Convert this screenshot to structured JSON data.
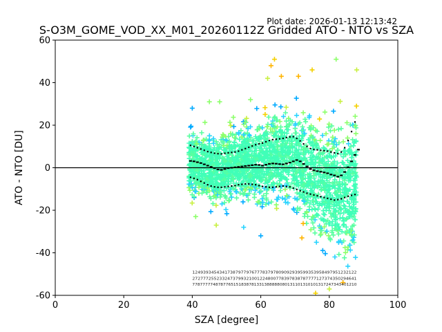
{
  "plot_date": "Plot date: 2026-01-13 12:13:42",
  "chart_data": {
    "type": "scatter",
    "title": "S-O3M_GOME_VOD_XX_M01_20260112Z Gridded ATO - NTO vs SZA",
    "xlabel": "SZA [degree]",
    "ylabel": "ATO - NTO [DU]",
    "xlim": [
      0,
      100
    ],
    "ylim": [
      -60,
      60
    ],
    "xticks": [
      0,
      20,
      40,
      60,
      80,
      100
    ],
    "yticks": [
      -60,
      -40,
      -20,
      0,
      20,
      40,
      60
    ],
    "zero_line": 0,
    "grid": false,
    "marker": "+",
    "point_colors": [
      "#00aaff",
      "#2ad4ff",
      "#40ffb8",
      "#58ffa0",
      "#8cff6a",
      "#c8f040",
      "#f4d000",
      "#ffb400"
    ],
    "sza_range": [
      39,
      88
    ],
    "envelope": {
      "x": [
        39,
        42,
        45,
        48,
        51,
        54,
        57,
        60,
        63,
        66,
        69,
        72,
        75,
        78,
        81,
        84,
        86,
        88
      ],
      "upper": [
        24,
        22,
        24,
        22,
        24,
        27,
        28,
        30,
        32,
        35,
        36,
        35,
        33,
        31,
        30,
        32,
        36,
        40
      ],
      "lower": [
        -18,
        -20,
        -22,
        -24,
        -23,
        -22,
        -22,
        -24,
        -25,
        -24,
        -26,
        -32,
        -40,
        -46,
        -50,
        -54,
        -56,
        -48
      ]
    },
    "outliers": [
      {
        "x": 64,
        "y": 51
      },
      {
        "x": 63,
        "y": 48
      },
      {
        "x": 62,
        "y": 42
      },
      {
        "x": 66,
        "y": 43
      },
      {
        "x": 71,
        "y": 43
      },
      {
        "x": 75,
        "y": 46
      },
      {
        "x": 82,
        "y": 51
      },
      {
        "x": 88,
        "y": 46
      },
      {
        "x": 40,
        "y": 28
      },
      {
        "x": 45,
        "y": 31
      },
      {
        "x": 48,
        "y": 31
      },
      {
        "x": 57,
        "y": 32
      },
      {
        "x": 76,
        "y": -59
      },
      {
        "x": 80,
        "y": -57
      },
      {
        "x": 84,
        "y": -54
      },
      {
        "x": 72,
        "y": -33
      },
      {
        "x": 60,
        "y": -32
      },
      {
        "x": 55,
        "y": -28
      },
      {
        "x": 47,
        "y": -27
      },
      {
        "x": 41,
        "y": -23
      }
    ],
    "series": [
      {
        "x": [
          39.5,
          40.5,
          41.5,
          42.5,
          43.5,
          44.5,
          45.5,
          46.5,
          47.5,
          48.5,
          49.5,
          50.5,
          51.5,
          52.5,
          53.5,
          54.5,
          55.5,
          56.5,
          57.5,
          58.5,
          59.5,
          60.5,
          61.5,
          62.5,
          63.5,
          64.5,
          65.5,
          66.5,
          67.5,
          68.5,
          69.5,
          70.5,
          71.5,
          72.5,
          73.5,
          74.5,
          75.5,
          76.5,
          77.5,
          78.5,
          79.5,
          80.5,
          81.5,
          82.5,
          83.5,
          84.5,
          85.5,
          86.5,
          87.5,
          88.5
        ],
        "y": [
          3.2,
          3.0,
          2.6,
          2.2,
          1.6,
          1.0,
          0.4,
          -0.2,
          -0.8,
          -1.0,
          -0.6,
          -0.2,
          0.0,
          0.2,
          0.4,
          0.6,
          0.8,
          1.0,
          1.2,
          1.4,
          1.3,
          1.0,
          1.4,
          1.8,
          2.0,
          1.9,
          1.7,
          1.6,
          2.0,
          2.4,
          3.0,
          3.6,
          3.0,
          1.8,
          0.6,
          -0.6,
          -1.2,
          -1.6,
          -1.9,
          -2.2,
          -2.6,
          -3.2,
          -3.6,
          -4.2,
          -3.6,
          -2.0,
          0.2,
          3.0,
          6.0,
          8.5
        ]
      },
      {
        "x": [
          39.5,
          40.5,
          41.5,
          42.5,
          43.5,
          44.5,
          45.5,
          46.5,
          47.5,
          48.5,
          49.5,
          50.5,
          51.5,
          52.5,
          53.5,
          54.5,
          55.5,
          56.5,
          57.5,
          58.5,
          59.5,
          60.5,
          61.5,
          62.5,
          63.5,
          64.5,
          65.5,
          66.5,
          67.5,
          68.5,
          69.5,
          70.5,
          71.5,
          72.5,
          73.5,
          74.5,
          75.5,
          76.5,
          77.5,
          78.5,
          79.5,
          80.5,
          81.5,
          82.5,
          83.5,
          84.5,
          85.5,
          86.5,
          87.5
        ],
        "y": [
          10.5,
          10.0,
          9.4,
          8.8,
          8.2,
          7.6,
          7.2,
          6.8,
          6.6,
          6.5,
          6.8,
          7.0,
          7.2,
          7.4,
          7.8,
          8.4,
          9.0,
          9.6,
          10.2,
          10.8,
          11.2,
          11.6,
          12.2,
          12.8,
          13.2,
          13.4,
          13.6,
          13.8,
          14.2,
          14.5,
          14.6,
          13.8,
          12.6,
          11.2,
          10.0,
          9.0,
          8.6,
          8.4,
          8.2,
          8.0,
          7.8,
          7.4,
          7.0,
          6.6,
          7.4,
          9.4,
          12.8,
          17.0,
          21.5
        ]
      },
      {
        "x": [
          39.5,
          40.5,
          41.5,
          42.5,
          43.5,
          44.5,
          45.5,
          46.5,
          47.5,
          48.5,
          49.5,
          50.5,
          51.5,
          52.5,
          53.5,
          54.5,
          55.5,
          56.5,
          57.5,
          58.5,
          59.5,
          60.5,
          61.5,
          62.5,
          63.5,
          64.5,
          65.5,
          66.5,
          67.5,
          68.5,
          69.5,
          70.5,
          71.5,
          72.5,
          73.5,
          74.5,
          75.5,
          76.5,
          77.5,
          78.5,
          79.5,
          80.5,
          81.5,
          82.5,
          83.5,
          84.5,
          85.5,
          86.5,
          87.5
        ],
        "y": [
          -4.5,
          -5.0,
          -5.6,
          -6.4,
          -7.2,
          -8.0,
          -8.6,
          -9.0,
          -9.2,
          -9.2,
          -9.0,
          -8.8,
          -8.6,
          -8.4,
          -8.0,
          -7.8,
          -7.6,
          -7.6,
          -7.8,
          -8.0,
          -8.4,
          -8.8,
          -9.0,
          -9.2,
          -9.2,
          -9.0,
          -8.8,
          -8.6,
          -8.8,
          -9.0,
          -9.6,
          -10.2,
          -10.8,
          -11.4,
          -12.0,
          -12.4,
          -12.8,
          -13.2,
          -13.6,
          -14.0,
          -14.4,
          -14.8,
          -15.2,
          -15.0,
          -14.6,
          -14.0,
          -13.4,
          -13.0,
          -12.6
        ]
      }
    ],
    "counts_rows": [
      "1249393454341738797797677783797809092939599353958497951232122",
      "2727772552332473799321001224800778397838787777127374350294641",
      "7787777748787765151838781331388888080131101310101317247343401210"
    ],
    "counts_x_range": [
      40,
      88
    ],
    "counts_y": [
      -49.8,
      -52.7,
      -55.5
    ]
  }
}
